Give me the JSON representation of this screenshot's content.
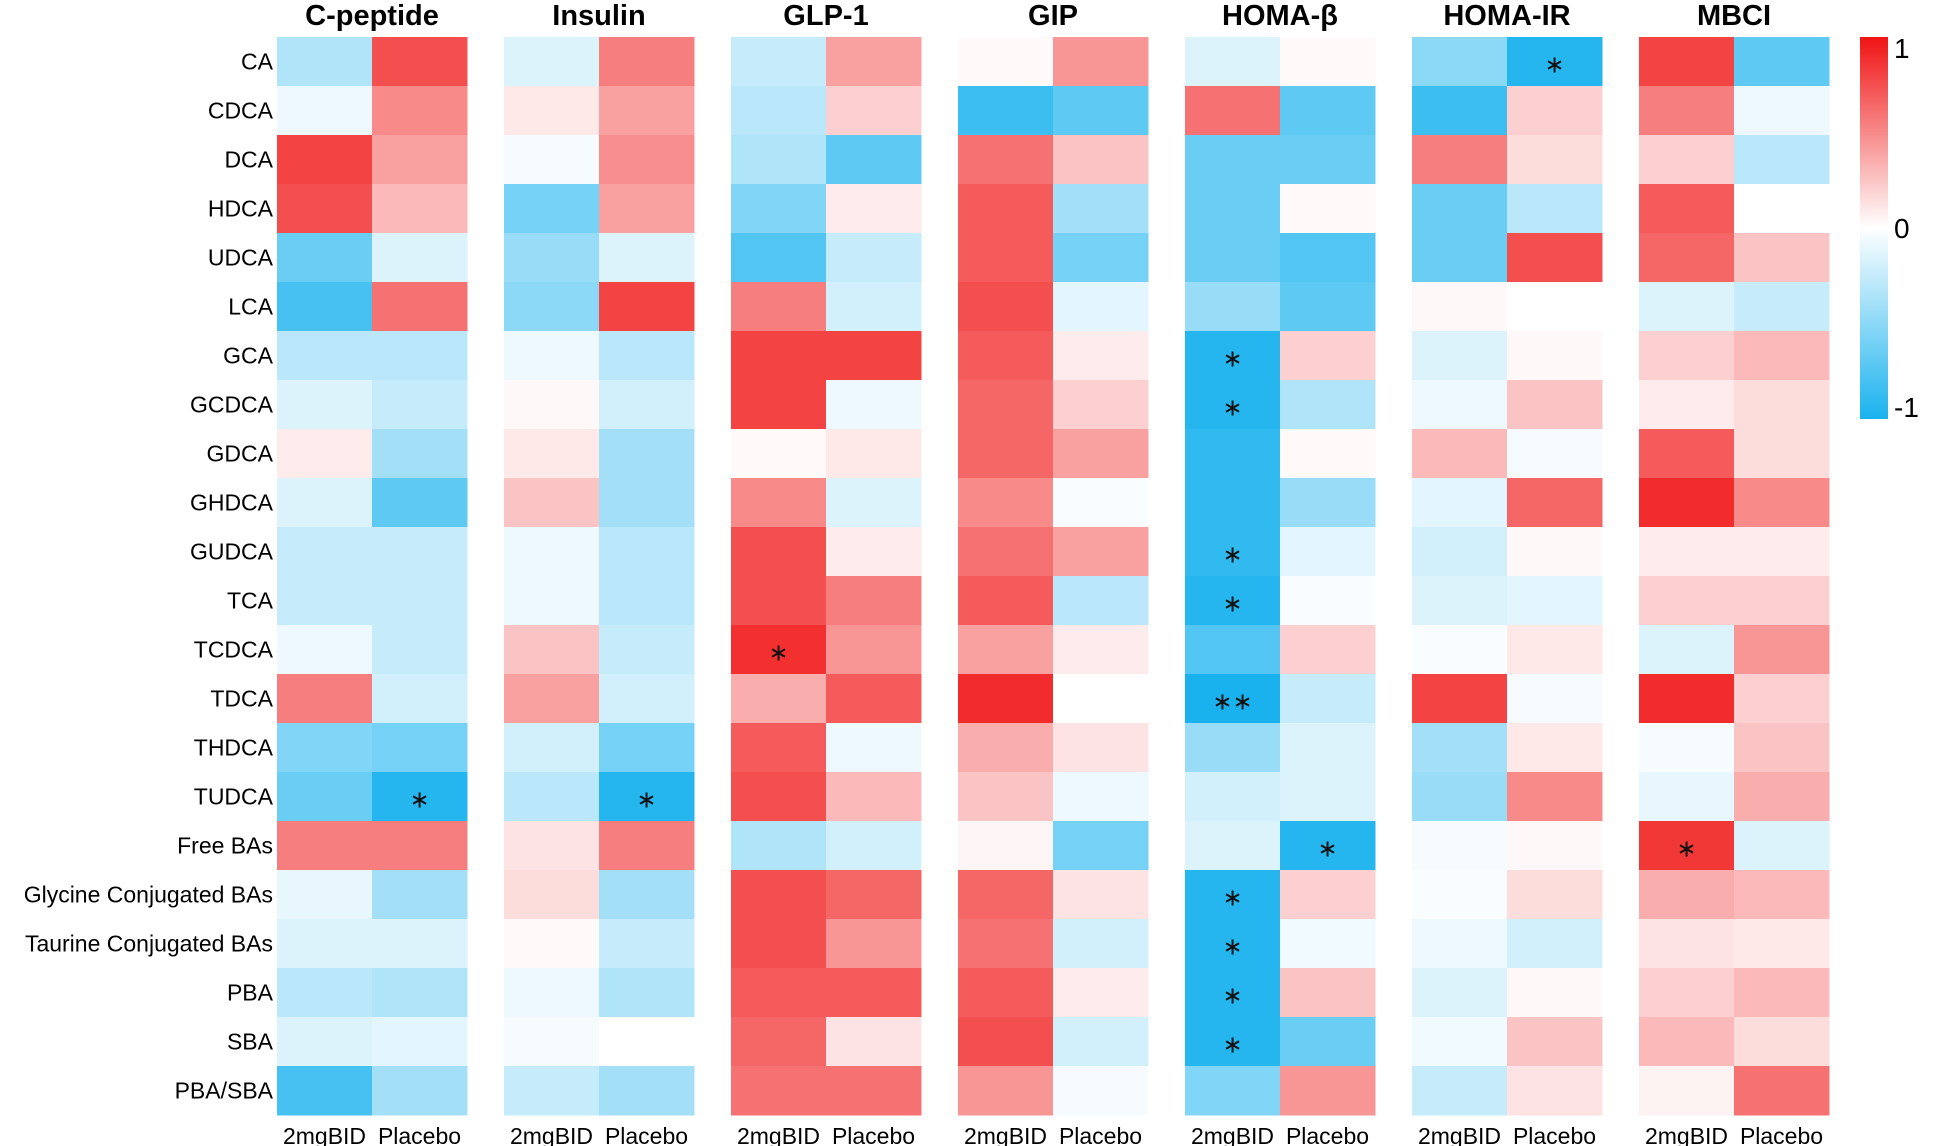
{
  "chart_data": {
    "type": "heatmap",
    "title": "",
    "panels": [
      "C-peptide",
      "Insulin",
      "GLP-1",
      "GIP",
      "HOMA-β",
      "HOMA-IR",
      "MBCI"
    ],
    "columns": [
      "2mgBID",
      "Placebo"
    ],
    "rows": [
      "CA",
      "CDCA",
      "DCA",
      "HDCA",
      "UDCA",
      "LCA",
      "GCA",
      "GCDCA",
      "GDCA",
      "GHDCA",
      "GUDCA",
      "TCA",
      "TCDCA",
      "TDCA",
      "THDCA",
      "TUDCA",
      "Free BAs",
      "Glycine Conjugated BAs",
      "Taurine Conjugated BAs",
      "PBA",
      "SBA",
      "PBA/SBA"
    ],
    "values": [
      [
        -0.35,
        0.75,
        -0.15,
        0.55,
        -0.25,
        0.4,
        0.02,
        0.45,
        -0.15,
        0.02,
        -0.5,
        -0.95,
        0.8,
        -0.7
      ],
      [
        -0.08,
        0.5,
        0.1,
        0.4,
        -0.3,
        0.2,
        -0.85,
        -0.7,
        0.6,
        -0.7,
        -0.85,
        0.2,
        0.55,
        -0.08
      ],
      [
        0.8,
        0.4,
        -0.04,
        0.48,
        -0.35,
        -0.7,
        0.6,
        0.25,
        -0.65,
        -0.65,
        0.55,
        0.15,
        0.2,
        -0.3
      ],
      [
        0.75,
        0.3,
        -0.6,
        0.4,
        -0.55,
        0.08,
        0.7,
        -0.4,
        -0.65,
        0.02,
        -0.65,
        -0.3,
        0.7,
        0.0
      ],
      [
        -0.65,
        -0.15,
        -0.45,
        -0.15,
        -0.75,
        -0.25,
        0.7,
        -0.6,
        -0.65,
        -0.75,
        -0.65,
        0.75,
        0.65,
        0.25
      ],
      [
        -0.8,
        0.6,
        -0.5,
        0.8,
        0.55,
        -0.2,
        0.75,
        -0.12,
        -0.45,
        -0.7,
        0.03,
        0.0,
        -0.15,
        -0.25
      ],
      [
        -0.3,
        -0.3,
        -0.08,
        -0.3,
        0.8,
        0.8,
        0.7,
        0.08,
        -0.95,
        0.2,
        -0.15,
        0.03,
        0.2,
        0.3
      ],
      [
        -0.15,
        -0.25,
        0.03,
        -0.2,
        0.8,
        -0.08,
        0.65,
        0.2,
        -0.95,
        -0.35,
        -0.08,
        0.25,
        0.08,
        0.15
      ],
      [
        0.08,
        -0.4,
        0.1,
        -0.4,
        0.02,
        0.1,
        0.65,
        0.4,
        -0.9,
        0.02,
        0.3,
        -0.04,
        0.7,
        0.15
      ],
      [
        -0.15,
        -0.7,
        0.25,
        -0.4,
        0.5,
        -0.15,
        0.5,
        -0.02,
        -0.9,
        -0.45,
        -0.12,
        0.65,
        0.9,
        0.5
      ],
      [
        -0.25,
        -0.25,
        -0.08,
        -0.3,
        0.75,
        0.08,
        0.6,
        0.4,
        -0.9,
        -0.12,
        -0.2,
        0.03,
        0.08,
        0.08
      ],
      [
        -0.25,
        -0.25,
        -0.08,
        -0.3,
        0.75,
        0.55,
        0.7,
        -0.3,
        -0.95,
        -0.02,
        -0.15,
        -0.12,
        0.2,
        0.2
      ],
      [
        -0.08,
        -0.25,
        0.25,
        -0.25,
        0.88,
        0.45,
        0.4,
        0.08,
        -0.75,
        0.2,
        -0.02,
        0.1,
        -0.15,
        0.45
      ],
      [
        0.55,
        -0.2,
        0.4,
        -0.2,
        0.35,
        0.7,
        0.9,
        0.0,
        -1.0,
        -0.25,
        0.8,
        -0.04,
        0.9,
        0.2
      ],
      [
        -0.55,
        -0.6,
        -0.2,
        -0.6,
        0.7,
        -0.08,
        0.35,
        0.12,
        -0.45,
        -0.15,
        -0.4,
        0.1,
        -0.04,
        0.25
      ],
      [
        -0.65,
        -0.95,
        -0.3,
        -0.95,
        0.75,
        0.3,
        0.25,
        -0.08,
        -0.2,
        -0.15,
        -0.45,
        0.5,
        -0.1,
        0.35
      ],
      [
        0.55,
        0.55,
        0.12,
        0.55,
        -0.35,
        -0.2,
        0.04,
        -0.6,
        -0.15,
        -0.95,
        -0.04,
        0.03,
        0.85,
        -0.15
      ],
      [
        -0.1,
        -0.4,
        0.15,
        -0.4,
        0.75,
        0.65,
        0.65,
        0.12,
        -0.95,
        0.2,
        -0.02,
        0.15,
        0.35,
        0.3
      ],
      [
        -0.15,
        -0.15,
        0.02,
        -0.25,
        0.75,
        0.45,
        0.6,
        -0.2,
        -0.95,
        -0.06,
        -0.08,
        -0.2,
        0.12,
        0.1
      ],
      [
        -0.3,
        -0.35,
        -0.08,
        -0.35,
        0.7,
        0.7,
        0.7,
        0.08,
        -0.95,
        0.25,
        -0.15,
        0.03,
        0.2,
        0.3
      ],
      [
        -0.15,
        -0.12,
        -0.04,
        0.0,
        0.65,
        0.12,
        0.75,
        -0.2,
        -0.95,
        -0.65,
        -0.06,
        0.25,
        0.3,
        0.15
      ],
      [
        -0.8,
        -0.4,
        -0.25,
        -0.4,
        0.6,
        0.6,
        0.45,
        -0.04,
        -0.55,
        0.45,
        -0.25,
        0.12,
        0.05,
        0.6
      ]
    ],
    "significance": [
      {
        "row": "CA",
        "panel": "HOMA-IR",
        "column": "Placebo",
        "mark": "∗"
      },
      {
        "row": "GCA",
        "panel": "HOMA-β",
        "column": "2mgBID",
        "mark": "∗"
      },
      {
        "row": "GCDCA",
        "panel": "HOMA-β",
        "column": "2mgBID",
        "mark": "∗"
      },
      {
        "row": "GUDCA",
        "panel": "HOMA-β",
        "column": "2mgBID",
        "mark": "∗"
      },
      {
        "row": "TCA",
        "panel": "HOMA-β",
        "column": "2mgBID",
        "mark": "∗"
      },
      {
        "row": "TCDCA",
        "panel": "GLP-1",
        "column": "2mgBID",
        "mark": "∗"
      },
      {
        "row": "TDCA",
        "panel": "HOMA-β",
        "column": "2mgBID",
        "mark": "∗∗"
      },
      {
        "row": "TUDCA",
        "panel": "C-peptide",
        "column": "Placebo",
        "mark": "∗"
      },
      {
        "row": "TUDCA",
        "panel": "Insulin",
        "column": "Placebo",
        "mark": "∗"
      },
      {
        "row": "Free BAs",
        "panel": "HOMA-β",
        "column": "Placebo",
        "mark": "∗"
      },
      {
        "row": "Free BAs",
        "panel": "MBCI",
        "column": "2mgBID",
        "mark": "∗"
      },
      {
        "row": "Glycine Conjugated BAs",
        "panel": "HOMA-β",
        "column": "2mgBID",
        "mark": "∗"
      },
      {
        "row": "Taurine Conjugated BAs",
        "panel": "HOMA-β",
        "column": "2mgBID",
        "mark": "∗"
      },
      {
        "row": "PBA",
        "panel": "HOMA-β",
        "column": "2mgBID",
        "mark": "∗"
      },
      {
        "row": "SBA",
        "panel": "HOMA-β",
        "column": "2mgBID",
        "mark": "∗"
      }
    ],
    "colorbar": {
      "range": [
        -1,
        1
      ],
      "ticks": [
        {
          "value": 1,
          "label": "1"
        },
        {
          "value": 0,
          "label": "0"
        },
        {
          "value": -1,
          "label": "-1"
        }
      ],
      "colors": {
        "low": "#19B2EE",
        "mid": "#FFFFFF",
        "high": "#F01414"
      },
      "position": "right"
    }
  }
}
